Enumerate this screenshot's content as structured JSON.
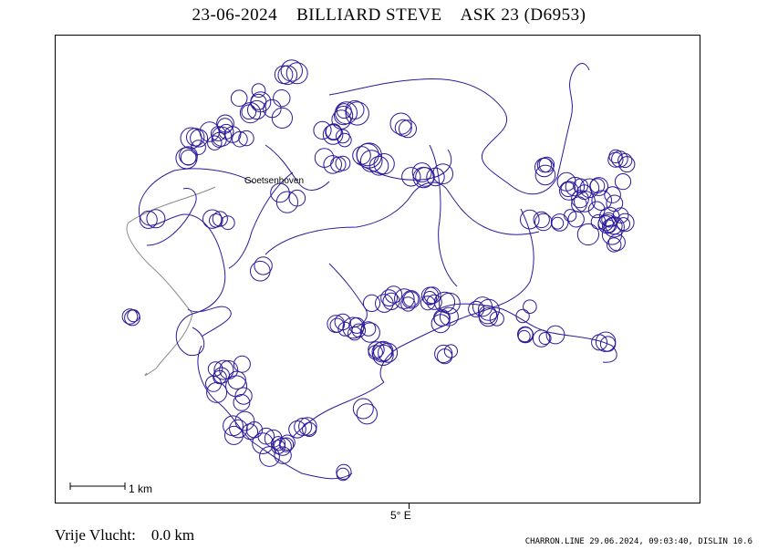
{
  "header": {
    "title": "23-06-2024    BILLIARD STEVE    ASK 23 (D6953)"
  },
  "map": {
    "place_label": "Goetsenhoven",
    "scale_label": "1  km",
    "longitude_label": "5° E",
    "colors": {
      "track": "#2a1a9a",
      "secondary_track": "#8a8a8a",
      "frame": "#000000"
    }
  },
  "footer": {
    "left_label": "Vrije Vlucht:",
    "left_value": "0.0 km",
    "right_text": "CHARRON.LINE 29.06.2024, 09:03:40, DISLIN 10.6"
  }
}
